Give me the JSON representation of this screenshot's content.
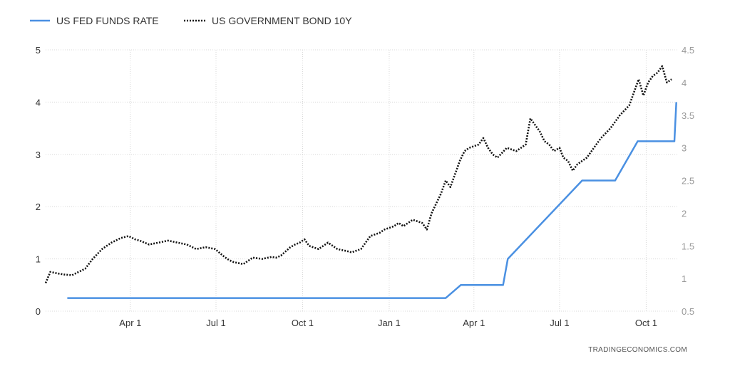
{
  "source": "TRADINGECONOMICS.COM",
  "chart_data": {
    "type": "line",
    "legend_position": "top-left",
    "grid": true,
    "x_ticks": [
      "Apr 1",
      "Jul 1",
      "Oct 1",
      "Jan 1",
      "Apr 1",
      "Jul 1",
      "Oct 1"
    ],
    "x_tick_days": [
      90,
      181,
      273,
      365,
      455,
      546,
      638
    ],
    "x_range_days": [
      0,
      671
    ],
    "y_left": {
      "ylim": [
        0,
        5
      ],
      "ticks": [
        "0",
        "1",
        "2",
        "3",
        "4",
        "5"
      ]
    },
    "y_right": {
      "ylim": [
        0.5,
        4.5
      ],
      "ticks": [
        "0.5",
        "1",
        "1.5",
        "2",
        "2.5",
        "3",
        "3.5",
        "4",
        "4.5"
      ]
    },
    "series": [
      {
        "name": "US FED FUNDS RATE",
        "axis": "left",
        "color": "#4a90e2",
        "style": "solid",
        "x_days": [
          23,
          425,
          441,
          486,
          491,
          570,
          605,
          629,
          668,
          670
        ],
        "values": [
          0.25,
          0.25,
          0.5,
          0.5,
          1.0,
          2.5,
          2.5,
          3.25,
          3.25,
          4.0
        ]
      },
      {
        "name": "US GOVERNMENT BOND 10Y",
        "axis": "right",
        "color": "#111111",
        "style": "dotted",
        "x_days": [
          0,
          5,
          12,
          20,
          28,
          35,
          42,
          50,
          60,
          70,
          80,
          88,
          95,
          100,
          110,
          120,
          130,
          140,
          150,
          160,
          170,
          180,
          190,
          195,
          200,
          210,
          220,
          230,
          240,
          245,
          250,
          260,
          265,
          270,
          275,
          280,
          290,
          300,
          310,
          320,
          325,
          335,
          340,
          345,
          355,
          360,
          370,
          375,
          380,
          390,
          400,
          405,
          410,
          420,
          425,
          430,
          440,
          445,
          450,
          460,
          465,
          470,
          475,
          480,
          490,
          500,
          510,
          515,
          525,
          530,
          535,
          540,
          546,
          550,
          555,
          560,
          565,
          570,
          575,
          580,
          590,
          600,
          610,
          620,
          625,
          630,
          635,
          640,
          645,
          650,
          655,
          660,
          665
        ],
        "values": [
          0.93,
          1.1,
          1.08,
          1.06,
          1.05,
          1.1,
          1.15,
          1.3,
          1.45,
          1.55,
          1.62,
          1.65,
          1.6,
          1.58,
          1.52,
          1.55,
          1.58,
          1.55,
          1.52,
          1.45,
          1.48,
          1.45,
          1.33,
          1.28,
          1.25,
          1.22,
          1.32,
          1.3,
          1.33,
          1.32,
          1.35,
          1.48,
          1.52,
          1.55,
          1.6,
          1.5,
          1.45,
          1.55,
          1.45,
          1.42,
          1.4,
          1.45,
          1.55,
          1.65,
          1.7,
          1.75,
          1.8,
          1.85,
          1.8,
          1.9,
          1.85,
          1.75,
          2.0,
          2.3,
          2.5,
          2.4,
          2.8,
          2.95,
          3.0,
          3.05,
          3.15,
          3.0,
          2.9,
          2.85,
          3.0,
          2.95,
          3.05,
          3.45,
          3.25,
          3.1,
          3.05,
          2.95,
          3.0,
          2.85,
          2.8,
          2.65,
          2.75,
          2.8,
          2.85,
          2.95,
          3.15,
          3.3,
          3.5,
          3.65,
          3.85,
          4.05,
          3.8,
          4.0,
          4.1,
          4.15,
          4.25,
          4.0,
          4.05
        ]
      }
    ]
  }
}
